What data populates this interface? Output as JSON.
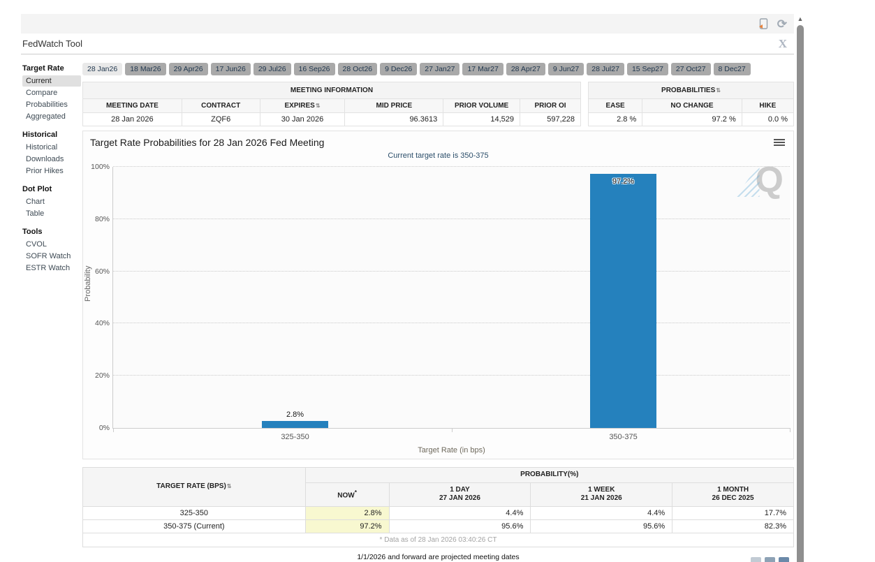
{
  "window": {
    "title": "FedWatch Tool",
    "close_glyph": "X"
  },
  "icons": {
    "refresh": "⟳",
    "sort": "⇅",
    "scroll_up": "▲"
  },
  "sidebar": {
    "sections": [
      {
        "header": "Target Rate",
        "items": [
          {
            "label": "Current",
            "selected": true
          },
          {
            "label": "Compare"
          },
          {
            "label": "Probabilities"
          },
          {
            "label": "Aggregated"
          }
        ]
      },
      {
        "header": "Historical",
        "items": [
          {
            "label": "Historical"
          },
          {
            "label": "Downloads"
          },
          {
            "label": "Prior Hikes"
          }
        ]
      },
      {
        "header": "Dot Plot",
        "items": [
          {
            "label": "Chart"
          },
          {
            "label": "Table"
          }
        ]
      },
      {
        "header": "Tools",
        "items": [
          {
            "label": "CVOL"
          },
          {
            "label": "SOFR Watch"
          },
          {
            "label": "ESTR Watch"
          }
        ]
      }
    ]
  },
  "tabs": {
    "selected_index": 0,
    "items": [
      "28 Jan26",
      "18 Mar26",
      "29 Apr26",
      "17 Jun26",
      "29 Jul26",
      "16 Sep26",
      "28 Oct26",
      "9 Dec26",
      "27 Jan27",
      "17 Mar27",
      "28 Apr27",
      "9 Jun27",
      "28 Jul27",
      "15 Sep27",
      "27 Oct27",
      "8 Dec27"
    ]
  },
  "meeting_info": {
    "title": "MEETING INFORMATION",
    "columns": [
      "MEETING DATE",
      "CONTRACT",
      "EXPIRES",
      "MID PRICE",
      "PRIOR VOLUME",
      "PRIOR OI"
    ],
    "row": [
      "28 Jan 2026",
      "ZQF6",
      "30 Jan 2026",
      "96.3613",
      "14,529",
      "597,228"
    ]
  },
  "probabilities_summary": {
    "title": "PROBABILITIES",
    "columns": [
      "EASE",
      "NO CHANGE",
      "HIKE"
    ],
    "row": [
      "2.8 %",
      "97.2 %",
      "0.0 %"
    ]
  },
  "chart_data": {
    "type": "bar",
    "title": "Target Rate Probabilities for 28 Jan 2026 Fed Meeting",
    "subtitle": "Current target rate is 350-375",
    "categories": [
      "325-350",
      "350-375"
    ],
    "values": [
      2.8,
      97.2
    ],
    "labels": [
      "2.8%",
      "97.2%"
    ],
    "xlabel": "Target Rate (in bps)",
    "ylabel": "Probability",
    "ylim": [
      0,
      100
    ],
    "yticks": [
      "0%",
      "20%",
      "40%",
      "60%",
      "80%",
      "100%"
    ],
    "grid": true,
    "legend": "none",
    "bar_color": "#2581bd"
  },
  "prob_table": {
    "col1_header": "TARGET RATE (BPS)",
    "group_header": "PROBABILITY(%)",
    "columns": [
      {
        "label": "NOW",
        "sup": "*",
        "date": ""
      },
      {
        "label": "1 DAY",
        "date": "27 JAN 2026"
      },
      {
        "label": "1 WEEK",
        "date": "21 JAN 2026"
      },
      {
        "label": "1 MONTH",
        "date": "26 DEC 2025"
      }
    ],
    "rows": [
      {
        "rate": "325-350",
        "values": [
          "2.8%",
          "4.4%",
          "4.4%",
          "17.7%"
        ]
      },
      {
        "rate": "350-375 (Current)",
        "values": [
          "97.2%",
          "95.6%",
          "95.6%",
          "82.3%"
        ]
      }
    ],
    "footnote": "* Data as of 28 Jan 2026 03:40:26 CT"
  },
  "footer_note": "1/1/2026 and forward are projected meeting dates"
}
